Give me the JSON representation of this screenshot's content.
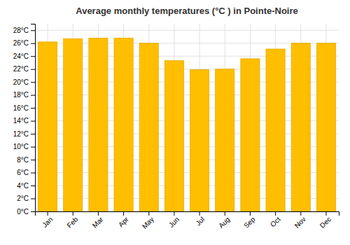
{
  "chart_data": {
    "type": "bar",
    "title": "Average monthly temperatures (°C ) in Pointe-Noire",
    "categories": [
      "Jan",
      "Feb",
      "Mar",
      "Apr",
      "May",
      "Jun",
      "Jul",
      "Aug",
      "Sep",
      "Oct",
      "Nov",
      "Dec"
    ],
    "values": [
      26.2,
      26.7,
      26.8,
      26.8,
      26.0,
      23.3,
      21.9,
      22.0,
      23.6,
      25.1,
      26.0,
      26.0
    ],
    "color": "#FFBE00",
    "ylim": [
      0,
      29
    ],
    "yticks": [
      {
        "value": 0,
        "label": "0°C"
      },
      {
        "value": 2,
        "label": "2°C"
      },
      {
        "value": 4,
        "label": "4°C"
      },
      {
        "value": 6,
        "label": "6°C"
      },
      {
        "value": 8,
        "label": "8°C"
      },
      {
        "value": 10,
        "label": "10°C"
      },
      {
        "value": 12,
        "label": "12°C"
      },
      {
        "value": 14,
        "label": "14°C"
      },
      {
        "value": 16,
        "label": "16°C"
      },
      {
        "value": 18,
        "label": "18°C"
      },
      {
        "value": 20,
        "label": "20°C"
      },
      {
        "value": 22,
        "label": "22°C"
      },
      {
        "value": 24,
        "label": "24°C"
      },
      {
        "value": 26,
        "label": "26°C"
      },
      {
        "value": 28,
        "label": "28°C"
      }
    ],
    "grid": true
  }
}
